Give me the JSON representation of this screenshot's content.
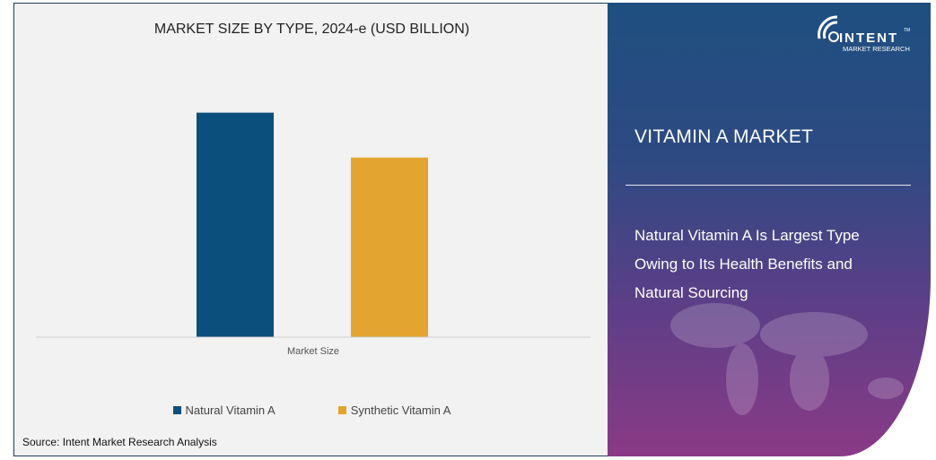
{
  "chart_data": {
    "type": "bar",
    "title": "MARKET SIZE BY TYPE, 2024-e (USD BILLION)",
    "categories": [
      "Market Size"
    ],
    "series": [
      {
        "name": "Natural Vitamin A",
        "values": [
          1.0
        ],
        "color": "#0b4f7c"
      },
      {
        "name": "Synthetic Vitamin A",
        "values": [
          0.8
        ],
        "color": "#e3a52f"
      }
    ],
    "xlabel": "Market Size",
    "ylabel": "",
    "ylim": [
      0,
      1.35
    ],
    "grid": false,
    "legend": "bottom"
  },
  "source": "Source: Intent Market Research Analysis",
  "panel": {
    "title": "VITAMIN A MARKET",
    "description": "Natural Vitamin A Is Largest Type Owing to Its Health Benefits and Natural Sourcing",
    "logo": {
      "name": "INTENT",
      "sub": "MARKET RESEARCH",
      "tm": "TM"
    }
  }
}
